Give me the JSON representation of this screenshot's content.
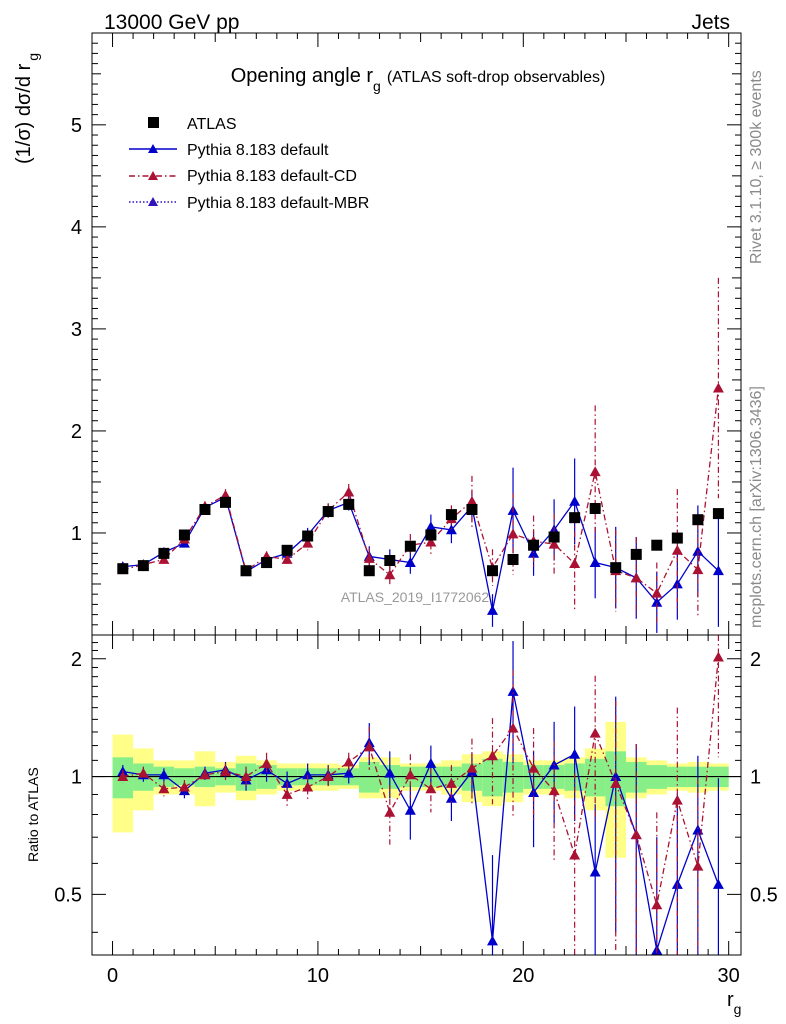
{
  "header": {
    "left": "13000 GeV pp",
    "right": "Jets"
  },
  "side_labels": {
    "rivet": "Rivet 3.1.10, ≥ 300k events",
    "mcplots": "mcplots.cern.ch [arXiv:1306.3436]"
  },
  "watermark": "ATLAS_2019_I1772062",
  "chart_data": {
    "type": "scatter",
    "title": {
      "main": "Opening angle r",
      "sub": "g",
      "note": "(ATLAS soft-drop observables)"
    },
    "xlabel": {
      "main": "r",
      "sub": "g"
    },
    "ylabel": {
      "main": "(1/σ) dσ/d r",
      "sub": "g"
    },
    "ratio_ylabel": "Ratio to ATLAS",
    "xlim": [
      -1,
      30.6
    ],
    "ylim": [
      0,
      5.9
    ],
    "ratio_ylim": [
      0.35,
      2.3
    ],
    "x_ticks": [
      "0",
      "10",
      "20",
      "30"
    ],
    "y_ticks": [
      "1",
      "2",
      "3",
      "4",
      "5"
    ],
    "ratio_ticks": [
      "0.5",
      "1",
      "2"
    ],
    "ratio_ticks_right": [
      "0.5",
      "1",
      "2"
    ],
    "legend": {
      "position": "top-left",
      "entries": [
        "ATLAS",
        "Pythia 8.183 default",
        "Pythia 8.183 default-CD",
        "Pythia 8.183 default-MBR"
      ]
    },
    "colors": {
      "data": "#000000",
      "default": "#0000cc",
      "cd": "#aa1133",
      "mbr": "#3311bb",
      "band_inner": "#88ee88",
      "band_outer": "#ffff88"
    },
    "x": [
      0.5,
      1.5,
      2.5,
      3.5,
      4.5,
      5.5,
      6.5,
      7.5,
      8.5,
      9.5,
      10.5,
      11.5,
      12.5,
      13.5,
      14.5,
      15.5,
      16.5,
      17.5,
      18.5,
      19.5,
      20.5,
      21.5,
      22.5,
      23.5,
      24.5,
      25.5,
      26.5,
      27.5,
      28.5,
      29.5
    ],
    "series": [
      {
        "name": "ATLAS",
        "style": "data",
        "values": [
          0.65,
          0.68,
          0.8,
          0.98,
          1.23,
          1.3,
          0.63,
          0.71,
          0.83,
          0.97,
          1.21,
          1.28,
          0.63,
          0.73,
          0.87,
          0.98,
          1.18,
          1.23,
          0.63,
          0.74,
          0.88,
          0.96,
          1.15,
          1.24,
          0.66,
          0.79,
          0.88,
          0.95,
          1.13,
          1.19
        ],
        "ratio_inner": [
          0.12,
          0.08,
          0.06,
          0.05,
          0.06,
          0.05,
          0.08,
          0.07,
          0.05,
          0.05,
          0.05,
          0.05,
          0.09,
          0.07,
          0.06,
          0.06,
          0.06,
          0.08,
          0.11,
          0.09,
          0.07,
          0.07,
          0.08,
          0.11,
          0.16,
          0.09,
          0.07,
          0.06,
          0.06,
          0.06
        ],
        "ratio_outer": [
          0.28,
          0.18,
          0.1,
          0.1,
          0.16,
          0.09,
          0.13,
          0.1,
          0.08,
          0.08,
          0.08,
          0.07,
          0.12,
          0.12,
          0.08,
          0.08,
          0.1,
          0.14,
          0.16,
          0.14,
          0.1,
          0.1,
          0.12,
          0.18,
          0.38,
          0.12,
          0.1,
          0.08,
          0.09,
          0.08
        ]
      },
      {
        "name": "Pythia 8.183 default",
        "style": "default",
        "values": [
          0.67,
          0.69,
          0.81,
          0.9,
          1.25,
          1.35,
          0.62,
          0.74,
          0.8,
          0.98,
          1.22,
          1.3,
          0.77,
          0.74,
          0.71,
          1.06,
          1.03,
          1.26,
          0.24,
          1.22,
          0.8,
          1.03,
          1.31,
          0.71,
          0.66,
          0.56,
          0.32,
          0.5,
          0.82,
          0.63
        ],
        "errors": [
          0.03,
          0.03,
          0.03,
          0.04,
          0.05,
          0.06,
          0.04,
          0.05,
          0.06,
          0.07,
          0.07,
          0.08,
          0.1,
          0.1,
          0.11,
          0.12,
          0.13,
          0.15,
          0.16,
          0.42,
          0.22,
          0.3,
          0.42,
          0.35,
          0.4,
          0.4,
          0.3,
          0.35,
          0.45,
          0.55
        ],
        "ratio": [
          1.03,
          1.01,
          1.01,
          0.92,
          1.02,
          1.04,
          0.98,
          1.04,
          0.96,
          1.01,
          1.01,
          1.02,
          1.22,
          1.02,
          0.82,
          1.08,
          0.88,
          1.03,
          0.38,
          1.65,
          0.91,
          1.07,
          1.14,
          0.57,
          1.0,
          0.71,
          0.36,
          0.53,
          0.73,
          0.53
        ],
        "ratio_errors": [
          0.04,
          0.04,
          0.04,
          0.04,
          0.04,
          0.05,
          0.06,
          0.07,
          0.07,
          0.07,
          0.06,
          0.06,
          0.15,
          0.14,
          0.13,
          0.12,
          0.11,
          0.12,
          0.25,
          0.57,
          0.25,
          0.31,
          0.37,
          0.28,
          0.6,
          0.5,
          0.34,
          0.37,
          0.4,
          0.46
        ]
      },
      {
        "name": "Pythia 8.183 default-CD",
        "style": "cd",
        "values": [
          0.64,
          0.69,
          0.74,
          0.94,
          1.26,
          1.37,
          0.63,
          0.77,
          0.74,
          0.9,
          1.22,
          1.4,
          0.75,
          0.59,
          0.88,
          0.91,
          1.14,
          1.31,
          0.66,
          0.99,
          0.92,
          0.89,
          0.7,
          1.6,
          0.63,
          0.56,
          0.41,
          0.83,
          0.64,
          2.42
        ],
        "errors": [
          0.03,
          0.03,
          0.03,
          0.04,
          0.05,
          0.06,
          0.04,
          0.05,
          0.06,
          0.07,
          0.07,
          0.08,
          0.1,
          0.1,
          0.11,
          0.12,
          0.13,
          0.25,
          0.18,
          0.4,
          0.25,
          0.3,
          0.45,
          0.65,
          0.4,
          0.4,
          0.3,
          0.6,
          0.45,
          1.08
        ],
        "ratio": [
          1.0,
          1.02,
          0.93,
          0.94,
          1.01,
          1.03,
          1.0,
          1.08,
          0.9,
          0.94,
          1.0,
          1.09,
          1.19,
          0.81,
          1.01,
          0.93,
          0.96,
          1.05,
          1.13,
          1.33,
          1.05,
          0.92,
          0.63,
          1.29,
          0.96,
          0.71,
          0.47,
          0.87,
          0.59,
          2.02
        ],
        "ratio_errors": [
          0.04,
          0.04,
          0.04,
          0.04,
          0.04,
          0.05,
          0.06,
          0.07,
          0.07,
          0.07,
          0.06,
          0.06,
          0.15,
          0.14,
          0.13,
          0.12,
          0.11,
          0.2,
          0.28,
          0.54,
          0.28,
          0.31,
          0.39,
          0.52,
          0.6,
          0.5,
          0.34,
          0.63,
          0.4,
          0.9
        ]
      },
      {
        "name": "Pythia 8.183 default-MBR",
        "style": "mbr",
        "values": [],
        "ratio": []
      }
    ]
  }
}
